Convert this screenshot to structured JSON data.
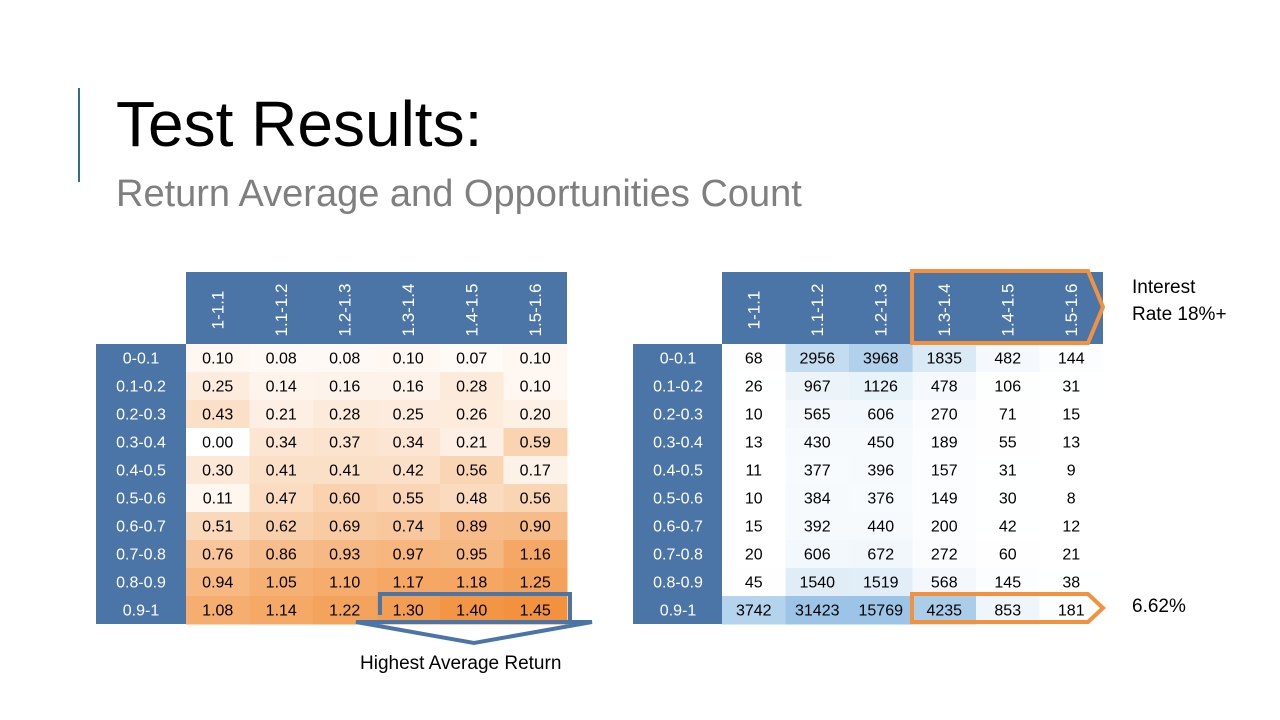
{
  "slide": {
    "title": "Test Results:",
    "subtitle": "Return Average and Opportunities Count",
    "interest_label": "Interest\nRate 18%+",
    "pct_label": "6.62%",
    "highest_label": "Highest Average Return"
  },
  "colors": {
    "header": "#4a75a6",
    "header_text": "#ffffff",
    "orange": "#f2923e",
    "blue_outline": "#4a75a6",
    "accent": "#2e6f8e"
  },
  "chart_data": [
    {
      "type": "heatmap",
      "title": "",
      "columns": [
        "1-1.1",
        "1.1-1.2",
        "1.2-1.3",
        "1.3-1.4",
        "1.4-1.5",
        "1.5-1.6"
      ],
      "rows": [
        "0-0.1",
        "0.1-0.2",
        "0.2-0.3",
        "0.3-0.4",
        "0.4-0.5",
        "0.5-0.6",
        "0.6-0.7",
        "0.7-0.8",
        "0.8-0.9",
        "0.9-1"
      ],
      "values": [
        [
          "0.10",
          "0.08",
          "0.08",
          "0.10",
          "0.07",
          "0.10"
        ],
        [
          "0.25",
          "0.14",
          "0.16",
          "0.16",
          "0.28",
          "0.10"
        ],
        [
          "0.43",
          "0.21",
          "0.28",
          "0.25",
          "0.26",
          "0.20"
        ],
        [
          "0.00",
          "0.34",
          "0.37",
          "0.34",
          "0.21",
          "0.59"
        ],
        [
          "0.30",
          "0.41",
          "0.41",
          "0.42",
          "0.56",
          "0.17"
        ],
        [
          "0.11",
          "0.47",
          "0.60",
          "0.55",
          "0.48",
          "0.56"
        ],
        [
          "0.51",
          "0.62",
          "0.69",
          "0.74",
          "0.89",
          "0.90"
        ],
        [
          "0.76",
          "0.86",
          "0.93",
          "0.97",
          "0.95",
          "1.16"
        ],
        [
          "0.94",
          "1.05",
          "1.10",
          "1.17",
          "1.18",
          "1.25"
        ],
        [
          "1.08",
          "1.14",
          "1.22",
          "1.30",
          "1.40",
          "1.45"
        ]
      ],
      "color_scale": {
        "low": "#ffffff",
        "high": "#f2923e",
        "min": 0,
        "max": 1.45
      }
    },
    {
      "type": "heatmap",
      "title": "",
      "columns": [
        "1-1.1",
        "1.1-1.2",
        "1.2-1.3",
        "1.3-1.4",
        "1.4-1.5",
        "1.5-1.6"
      ],
      "rows": [
        "0-0.1",
        "0.1-0.2",
        "0.2-0.3",
        "0.3-0.4",
        "0.4-0.5",
        "0.5-0.6",
        "0.6-0.7",
        "0.7-0.8",
        "0.8-0.9",
        "0.9-1"
      ],
      "values": [
        [
          "68",
          "2956",
          "3968",
          "1835",
          "482",
          "144"
        ],
        [
          "26",
          "967",
          "1126",
          "478",
          "106",
          "31"
        ],
        [
          "10",
          "565",
          "606",
          "270",
          "71",
          "15"
        ],
        [
          "13",
          "430",
          "450",
          "189",
          "55",
          "13"
        ],
        [
          "11",
          "377",
          "396",
          "157",
          "31",
          "9"
        ],
        [
          "10",
          "384",
          "376",
          "149",
          "30",
          "8"
        ],
        [
          "15",
          "392",
          "440",
          "200",
          "42",
          "12"
        ],
        [
          "20",
          "606",
          "672",
          "272",
          "60",
          "21"
        ],
        [
          "45",
          "1540",
          "1519",
          "568",
          "145",
          "38"
        ],
        [
          "3742",
          "31423",
          "15769",
          "4235",
          "853",
          "181"
        ]
      ],
      "color_scale": {
        "low": "#ffffff",
        "high": "#9bc4e6",
        "min": 0,
        "max": 5000
      }
    }
  ]
}
